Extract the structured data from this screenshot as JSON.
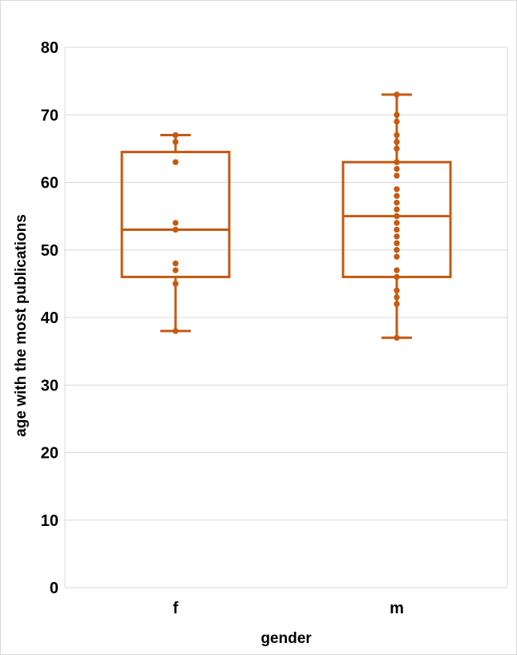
{
  "chart_data": {
    "type": "box",
    "title": "",
    "xlabel": "gender",
    "ylabel": "age with the most publications",
    "ylim": [
      0,
      80
    ],
    "yticks": [
      "0",
      "10",
      "20",
      "30",
      "40",
      "50",
      "60",
      "70",
      "80"
    ],
    "grid": true,
    "color": "#c55a11",
    "categories": [
      "f",
      "m"
    ],
    "boxes": [
      {
        "category": "f",
        "min": 38,
        "q1": 46,
        "median": 53,
        "q3": 64.5,
        "max": 67,
        "points": [
          38,
          45,
          47,
          48,
          53,
          54,
          63,
          66,
          67
        ]
      },
      {
        "category": "m",
        "min": 37,
        "q1": 46,
        "median": 55,
        "q3": 63,
        "max": 73,
        "points": [
          37,
          42,
          43,
          44,
          46,
          47,
          49,
          50,
          51,
          52,
          53,
          54,
          55,
          56,
          57,
          58,
          59,
          61,
          62,
          63,
          65,
          66,
          67,
          69,
          70,
          73
        ]
      }
    ]
  }
}
